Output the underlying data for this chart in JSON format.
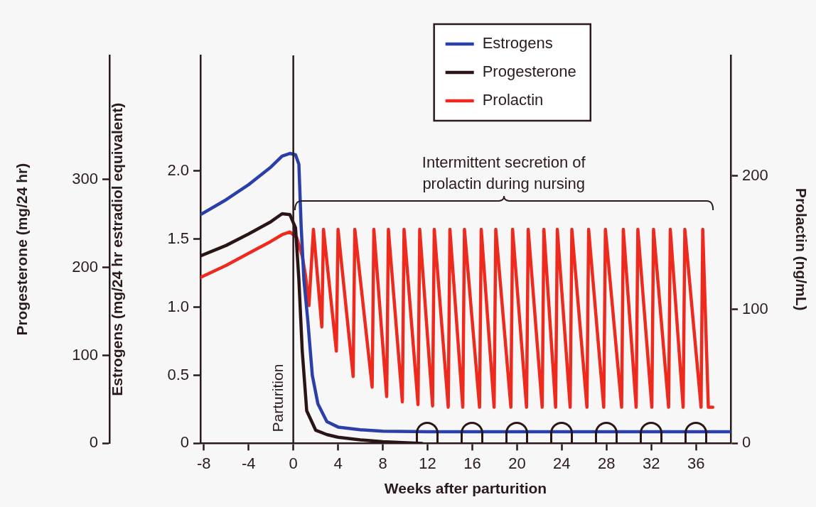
{
  "chart_data": {
    "type": "line",
    "xlabel": "Weeks after parturition",
    "ylabel": "Estrogens (mg/24 hr estradiol equivalent)",
    "y3label": "Progesterone (mg/24 hr)",
    "y2label": "Prolactin (ng/mL)",
    "xlim": [
      -8.3,
      39.1
    ],
    "xticks": [
      -8,
      -4,
      0,
      4,
      8,
      12,
      16,
      20,
      24,
      28,
      32,
      36
    ],
    "ylim": [
      0,
      2.85
    ],
    "yticks": [
      0,
      {
        "value": 0.5,
        "label": "0.5"
      },
      {
        "value": 1,
        "label": "1.0"
      },
      {
        "value": 1.5,
        "label": "1.5"
      },
      {
        "value": 2,
        "label": "2.0"
      }
    ],
    "y3lim": [
      0,
      441
    ],
    "y3ticks": [
      0,
      100,
      200,
      300
    ],
    "y2lim": [
      0,
      290
    ],
    "y2ticks": [
      0,
      100,
      200
    ],
    "legend": "top",
    "grid": false,
    "marker": "none",
    "line_style": "solid",
    "ref_lines": [
      {
        "axis": "x",
        "value": 0,
        "label": "Parturition"
      }
    ],
    "annotations": [
      "Intermittent secretion of prolactin during nursing"
    ],
    "series": [
      {
        "name": "Estrogens",
        "color": "#2b3fa8",
        "axis": "y",
        "x": [
          -8.3,
          -6,
          -4,
          -2,
          -1,
          -0.3,
          0.2,
          0.5,
          0.7,
          0.95,
          1.3,
          1.7,
          2.2,
          3,
          4,
          6,
          8,
          12,
          20,
          30,
          39.1
        ],
        "values": [
          1.68,
          1.79,
          1.9,
          2.03,
          2.11,
          2.13,
          2.12,
          2.05,
          1.6,
          1.2,
          0.9,
          0.5,
          0.29,
          0.16,
          0.12,
          0.1,
          0.09,
          0.085,
          0.085,
          0.085,
          0.085
        ]
      },
      {
        "name": "Progesterone",
        "color": "#2a1416",
        "axis": "y3",
        "x": [
          -8.3,
          -6,
          -4,
          -2,
          -1,
          -0.3,
          0.2,
          0.5,
          0.8,
          1.2,
          2,
          3,
          4,
          6,
          8,
          11.5
        ],
        "values": [
          213,
          225,
          238,
          252,
          261,
          260,
          245,
          186,
          105,
          37,
          15,
          10,
          7,
          4,
          2,
          0
        ]
      },
      {
        "name": "Prolactin",
        "color": "#ee2a1e",
        "axis": "y2",
        "x": [
          -8.3,
          -6,
          -4,
          -2,
          -1,
          -0.3,
          0.3,
          0.8,
          1.1,
          1.4,
          1.8,
          2.55,
          2.7,
          3.85,
          4.0,
          5.35,
          5.5,
          7.05,
          7.2,
          8.35,
          8.5,
          9.75,
          9.9,
          11.15,
          11.3,
          12.45,
          12.6,
          13.85,
          14.0,
          15.15,
          15.3,
          16.65,
          16.8,
          17.95,
          18.1,
          19.45,
          19.6,
          20.85,
          21.0,
          22.25,
          22.4,
          23.45,
          23.6,
          24.75,
          24.9,
          26.25,
          26.4,
          27.75,
          27.9,
          29.35,
          29.5,
          30.65,
          30.8,
          32.05,
          32.2,
          33.55,
          33.7,
          34.85,
          35.0,
          36.45,
          36.6,
          37.1,
          37.5
        ],
        "values": [
          124,
          133,
          142,
          151,
          156,
          158,
          154,
          140,
          125,
          103,
          160,
          87,
          160,
          69,
          160,
          50,
          160,
          42,
          160,
          35,
          160,
          31,
          160,
          29,
          160,
          28,
          160,
          27,
          160,
          27,
          160,
          27,
          160,
          27,
          160,
          27,
          160,
          27,
          160,
          27,
          160,
          27,
          160,
          27,
          160,
          27,
          160,
          27,
          160,
          27,
          160,
          27,
          160,
          27,
          160,
          27,
          160,
          27,
          160,
          27,
          160,
          27,
          27
        ]
      }
    ]
  }
}
